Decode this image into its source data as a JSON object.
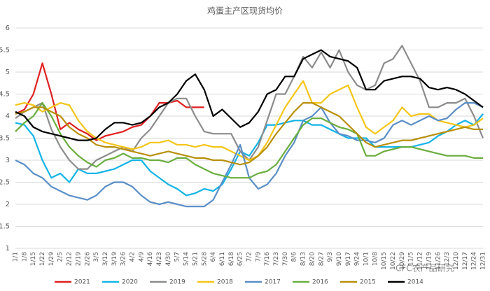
{
  "chart_data": {
    "type": "line",
    "title": "鸡蛋主产区现货均价",
    "watermark": "CFC农产品研究",
    "categories": [
      "1/1",
      "1/8",
      "1/15",
      "1/22",
      "1/29",
      "2/5",
      "2/12",
      "2/19",
      "2/26",
      "3/5",
      "3/12",
      "3/19",
      "3/26",
      "4/2",
      "4/9",
      "4/16",
      "4/23",
      "4/30",
      "5/7",
      "5/14",
      "5/21",
      "5/28",
      "6/4",
      "6/11",
      "6/18",
      "6/25",
      "7/2",
      "7/9",
      "7/16",
      "7/23",
      "7/30",
      "8/6",
      "8/13",
      "8/20",
      "8/27",
      "9/3",
      "9/10",
      "9/17",
      "9/24",
      "10/1",
      "10/8",
      "10/15",
      "10/22",
      "10/29",
      "11/5",
      "11/12",
      "11/19",
      "11/26",
      "12/3",
      "12/10",
      "12/17",
      "12/24",
      "12/31"
    ],
    "ylim": [
      1,
      6
    ],
    "yticks": [
      1,
      1.5,
      2,
      2.5,
      3,
      3.5,
      4,
      4.5,
      5,
      5.5,
      6
    ],
    "grid": true,
    "legend": "bottom",
    "series": [
      {
        "name": "2021",
        "color": "#e02020",
        "values": [
          4.05,
          4.15,
          4.5,
          5.2,
          4.5,
          3.7,
          3.85,
          3.7,
          3.6,
          3.45,
          3.55,
          3.6,
          3.65,
          3.75,
          3.8,
          4.0,
          4.3,
          4.3,
          4.35,
          4.2,
          4.2,
          4.2,
          null,
          null,
          null,
          null,
          null,
          null,
          null,
          null,
          null,
          null,
          null,
          null,
          null,
          null,
          null,
          null,
          null,
          null,
          null,
          null,
          null,
          null,
          null,
          null,
          null,
          null,
          null,
          null,
          null,
          null,
          null
        ]
      },
      {
        "name": "2020",
        "color": "#12b4e6",
        "values": [
          3.85,
          3.8,
          3.55,
          3.0,
          2.6,
          2.7,
          2.5,
          2.8,
          2.7,
          2.7,
          2.75,
          2.8,
          2.9,
          3.0,
          3.0,
          2.75,
          2.6,
          2.45,
          2.35,
          2.2,
          2.25,
          2.35,
          2.3,
          2.45,
          2.8,
          3.2,
          3.1,
          3.4,
          3.8,
          3.8,
          3.85,
          3.9,
          3.9,
          3.8,
          3.8,
          3.7,
          3.6,
          3.5,
          3.5,
          3.5,
          3.3,
          3.3,
          3.3,
          3.3,
          3.3,
          3.35,
          3.4,
          3.55,
          3.65,
          3.8,
          3.9,
          3.8,
          4.05
        ]
      },
      {
        "name": "2019",
        "color": "#8c8c8c",
        "values": [
          3.95,
          4.1,
          4.2,
          4.3,
          3.7,
          3.3,
          3.0,
          2.8,
          2.8,
          3.0,
          3.1,
          3.2,
          3.3,
          3.2,
          3.5,
          3.7,
          4.0,
          4.3,
          4.4,
          4.4,
          4.0,
          3.65,
          3.6,
          3.6,
          3.6,
          3.2,
          3.0,
          3.3,
          3.9,
          4.5,
          4.5,
          4.9,
          5.35,
          5.1,
          5.45,
          5.1,
          5.5,
          5.0,
          4.7,
          4.6,
          4.7,
          5.2,
          5.3,
          5.6,
          5.2,
          4.8,
          4.2,
          4.2,
          4.3,
          4.3,
          4.4,
          4.0,
          3.5
        ]
      },
      {
        "name": "2018",
        "color": "#f5c518",
        "values": [
          4.25,
          4.3,
          4.25,
          4.1,
          4.2,
          4.3,
          4.25,
          3.9,
          3.65,
          3.5,
          3.4,
          3.35,
          3.3,
          3.25,
          3.3,
          3.4,
          3.4,
          3.45,
          3.35,
          3.35,
          3.3,
          3.35,
          3.3,
          3.3,
          3.2,
          3.1,
          3.0,
          3.1,
          3.4,
          3.8,
          4.2,
          4.5,
          4.8,
          4.3,
          4.3,
          4.5,
          4.6,
          4.7,
          4.2,
          3.75,
          3.6,
          3.75,
          3.9,
          4.2,
          4.0,
          4.05,
          4.05,
          3.9,
          3.85,
          3.8,
          3.75,
          3.8,
          3.95
        ]
      },
      {
        "name": "2017",
        "color": "#5b8fc7",
        "values": [
          3.0,
          2.9,
          2.7,
          2.6,
          2.4,
          2.3,
          2.2,
          2.15,
          2.1,
          2.2,
          2.4,
          2.5,
          2.5,
          2.4,
          2.2,
          2.05,
          2.0,
          2.05,
          2.0,
          1.95,
          1.95,
          1.95,
          2.1,
          2.5,
          2.9,
          3.35,
          2.6,
          2.35,
          2.45,
          2.7,
          3.1,
          3.4,
          3.9,
          4.0,
          4.2,
          3.85,
          3.6,
          3.55,
          3.45,
          3.45,
          3.4,
          3.5,
          3.8,
          3.9,
          3.8,
          3.9,
          4.0,
          3.9,
          3.95,
          4.15,
          4.3,
          4.3,
          4.2
        ]
      },
      {
        "name": "2016",
        "color": "#6aae3f",
        "values": [
          3.65,
          3.85,
          4.0,
          4.3,
          4.0,
          3.6,
          3.3,
          3.1,
          2.95,
          2.85,
          3.0,
          3.05,
          3.15,
          3.05,
          3.05,
          3.0,
          3.0,
          2.95,
          3.05,
          3.05,
          2.9,
          2.8,
          2.7,
          2.65,
          2.6,
          2.6,
          2.6,
          2.7,
          2.75,
          2.9,
          3.2,
          3.5,
          3.8,
          3.95,
          3.95,
          3.85,
          3.75,
          3.7,
          3.6,
          3.1,
          3.1,
          3.2,
          3.25,
          3.3,
          3.3,
          3.25,
          3.2,
          3.15,
          3.1,
          3.1,
          3.1,
          3.05,
          3.05
        ]
      },
      {
        "name": "2015",
        "color": "#b8900a",
        "values": [
          4.05,
          4.1,
          4.2,
          4.2,
          4.1,
          4.0,
          3.75,
          3.6,
          3.5,
          3.35,
          3.3,
          3.3,
          3.25,
          3.2,
          3.15,
          3.1,
          3.15,
          3.2,
          3.15,
          3.1,
          3.05,
          3.05,
          3.0,
          3.0,
          2.95,
          2.9,
          2.95,
          3.1,
          3.3,
          3.6,
          3.85,
          4.1,
          4.3,
          4.3,
          4.2,
          4.1,
          4.0,
          3.8,
          3.6,
          3.4,
          3.3,
          3.35,
          3.4,
          3.45,
          3.45,
          3.5,
          3.55,
          3.6,
          3.65,
          3.7,
          3.75,
          3.7,
          3.7
        ]
      },
      {
        "name": "2014",
        "color": "#000000",
        "values": [
          4.1,
          4.0,
          3.75,
          3.65,
          3.6,
          3.55,
          3.5,
          3.45,
          3.45,
          3.5,
          3.7,
          3.85,
          3.85,
          3.8,
          3.85,
          4.0,
          4.2,
          4.3,
          4.5,
          4.8,
          4.95,
          4.6,
          4.0,
          4.15,
          3.95,
          3.75,
          3.85,
          4.1,
          4.5,
          4.6,
          4.9,
          4.9,
          5.3,
          5.4,
          5.5,
          5.35,
          5.3,
          5.25,
          5.1,
          4.6,
          4.6,
          4.8,
          4.85,
          4.9,
          4.9,
          4.85,
          4.65,
          4.6,
          4.65,
          4.6,
          4.5,
          4.35,
          4.2
        ]
      }
    ]
  }
}
